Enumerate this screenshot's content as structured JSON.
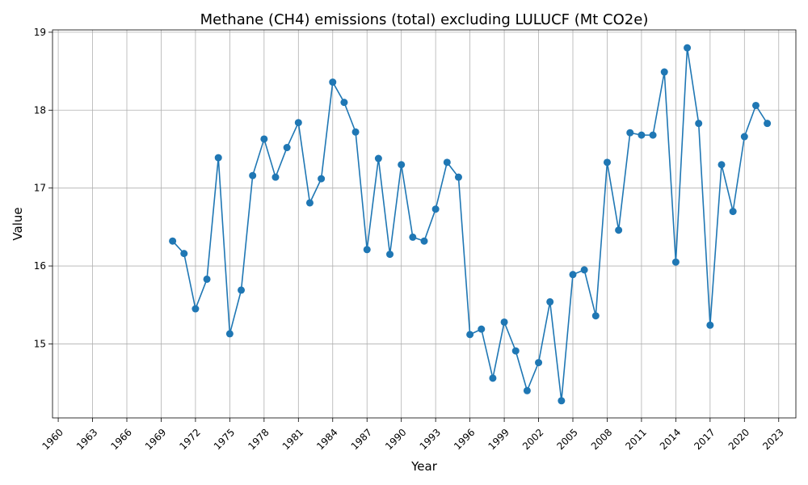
{
  "chart_data": {
    "type": "line",
    "title": "Methane (CH4) emissions (total) excluding LULUCF (Mt CO2e)",
    "xlabel": "Year",
    "ylabel": "Value",
    "xlim": [
      1959.5,
      2024.5
    ],
    "ylim": [
      14.05,
      19.03
    ],
    "grid": true,
    "line_color": "#1f77b4",
    "x_ticks": [
      1960,
      1963,
      1966,
      1969,
      1972,
      1975,
      1978,
      1981,
      1984,
      1987,
      1990,
      1993,
      1996,
      1999,
      2002,
      2005,
      2008,
      2011,
      2014,
      2017,
      2020,
      2023
    ],
    "y_ticks": [
      15,
      16,
      17,
      18,
      19
    ],
    "series": [
      {
        "x": [
          1970,
          1971,
          1972,
          1973,
          1974,
          1975,
          1976,
          1977,
          1978,
          1979,
          1980,
          1981,
          1982,
          1983,
          1984,
          1985,
          1986,
          1987,
          1988,
          1989,
          1990,
          1991,
          1992,
          1993,
          1994,
          1995,
          1996,
          1997,
          1998,
          1999,
          2000,
          2001,
          2002,
          2003,
          2004,
          2005,
          2006,
          2007,
          2008,
          2009,
          2010,
          2011,
          2012,
          2013,
          2014,
          2015,
          2016,
          2017,
          2018,
          2019,
          2020,
          2021,
          2022
        ],
        "values": [
          16.32,
          16.16,
          15.45,
          15.83,
          17.39,
          15.13,
          15.69,
          17.16,
          17.63,
          17.14,
          17.52,
          17.84,
          16.81,
          17.12,
          18.36,
          18.1,
          17.72,
          16.21,
          17.38,
          16.15,
          17.3,
          16.37,
          16.32,
          16.73,
          17.33,
          17.14,
          15.12,
          15.19,
          14.56,
          15.28,
          14.91,
          14.4,
          14.76,
          15.54,
          14.27,
          15.89,
          15.95,
          15.36,
          17.33,
          16.46,
          17.71,
          17.68,
          17.68,
          18.49,
          16.05,
          18.8,
          17.83,
          15.24,
          17.3,
          16.7,
          17.66,
          18.06,
          17.83
        ]
      }
    ]
  }
}
